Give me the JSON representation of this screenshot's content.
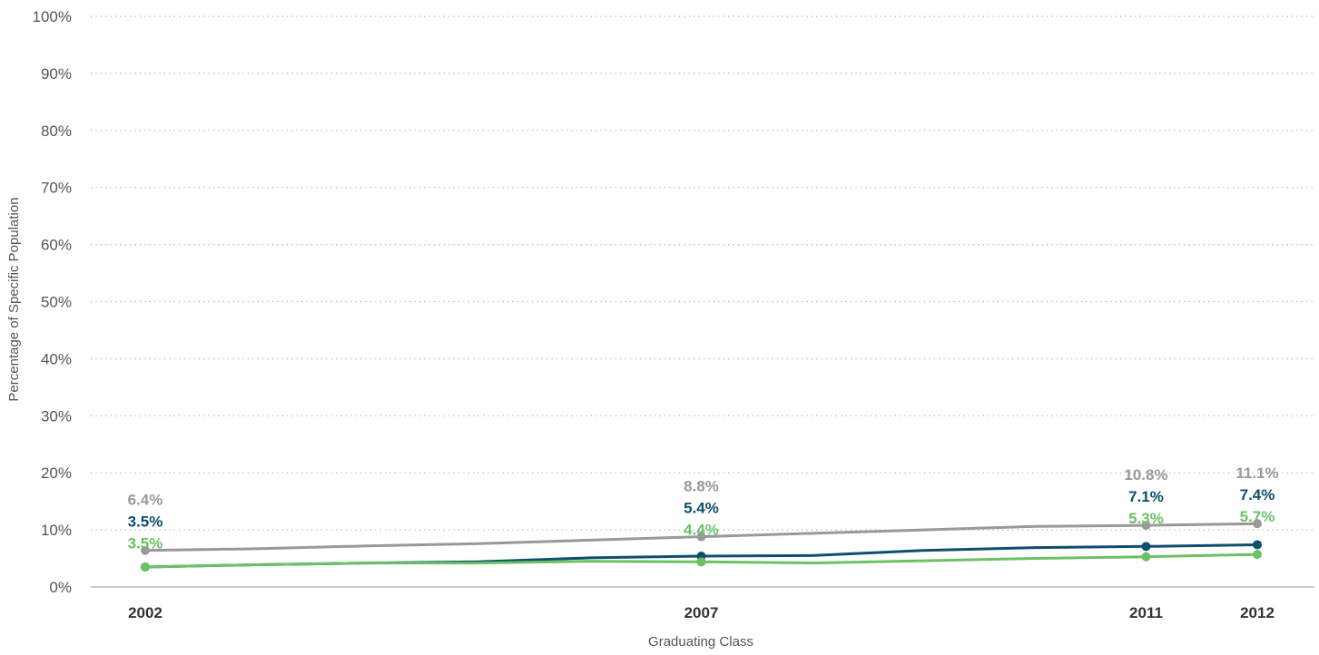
{
  "chart_data": {
    "type": "line",
    "xlabel": "Graduating Class",
    "ylabel": "Percentage of Specific Population",
    "xlim": [
      2002,
      2012
    ],
    "ylim": [
      0,
      100
    ],
    "y_ticks": [
      {
        "value": 0,
        "label": "0%"
      },
      {
        "value": 10,
        "label": "10%"
      },
      {
        "value": 20,
        "label": "20%"
      },
      {
        "value": 30,
        "label": "30%"
      },
      {
        "value": 40,
        "label": "40%"
      },
      {
        "value": 50,
        "label": "50%"
      },
      {
        "value": 60,
        "label": "60%"
      },
      {
        "value": 70,
        "label": "70%"
      },
      {
        "value": 80,
        "label": "80%"
      },
      {
        "value": 90,
        "label": "90%"
      },
      {
        "value": 100,
        "label": "100%"
      }
    ],
    "x_ticks": [
      {
        "value": 2002,
        "label": "2002"
      },
      {
        "value": 2007,
        "label": "2007"
      },
      {
        "value": 2011,
        "label": "2011"
      },
      {
        "value": 2012,
        "label": "2012"
      }
    ],
    "grid": true,
    "series": [
      {
        "color": "#999999",
        "x": [
          2002,
          2003,
          2004,
          2005,
          2006,
          2007,
          2008,
          2009,
          2010,
          2011,
          2012
        ],
        "values": [
          6.4,
          6.7,
          7.2,
          7.6,
          8.2,
          8.8,
          9.4,
          10.0,
          10.6,
          10.8,
          11.1
        ],
        "markers": [
          {
            "x": 2002,
            "y": 6.4,
            "label": "6.4%"
          },
          {
            "x": 2007,
            "y": 8.8,
            "label": "8.8%"
          },
          {
            "x": 2011,
            "y": 10.8,
            "label": "10.8%"
          },
          {
            "x": 2012,
            "y": 11.1,
            "label": "11.1%"
          }
        ]
      },
      {
        "color": "#0d4f6e",
        "x": [
          2002,
          2003,
          2004,
          2005,
          2006,
          2007,
          2008,
          2009,
          2010,
          2011,
          2012
        ],
        "values": [
          3.5,
          3.9,
          4.2,
          4.4,
          5.1,
          5.4,
          5.5,
          6.4,
          6.9,
          7.1,
          7.4
        ],
        "markers": [
          {
            "x": 2002,
            "y": 3.5,
            "label": "3.5%"
          },
          {
            "x": 2007,
            "y": 5.4,
            "label": "5.4%"
          },
          {
            "x": 2011,
            "y": 7.1,
            "label": "7.1%"
          },
          {
            "x": 2012,
            "y": 7.4,
            "label": "7.4%"
          }
        ]
      },
      {
        "color": "#6cc165",
        "x": [
          2002,
          2003,
          2004,
          2005,
          2006,
          2007,
          2008,
          2009,
          2010,
          2011,
          2012
        ],
        "values": [
          3.5,
          3.9,
          4.2,
          4.2,
          4.5,
          4.4,
          4.2,
          4.6,
          5.0,
          5.3,
          5.7
        ],
        "markers": [
          {
            "x": 2002,
            "y": 3.5,
            "label": "3.5%"
          },
          {
            "x": 2007,
            "y": 4.4,
            "label": "4.4%"
          },
          {
            "x": 2011,
            "y": 5.3,
            "label": "5.3%"
          },
          {
            "x": 2012,
            "y": 5.7,
            "label": "5.7%"
          }
        ]
      }
    ]
  }
}
